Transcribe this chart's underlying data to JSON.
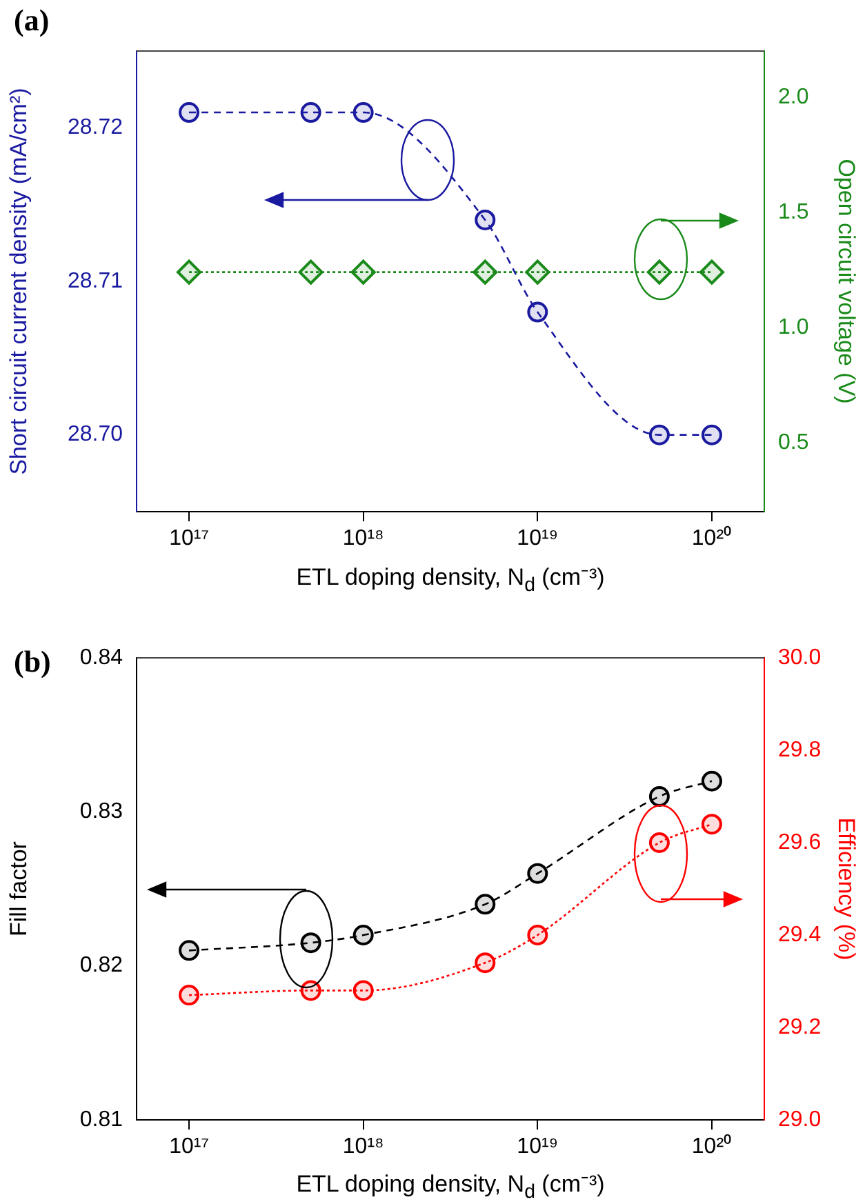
{
  "chart_data": [
    {
      "type": "line",
      "title": "(a)",
      "xlabel": "ETL doping density, N$_{d}$ (cm⁻³)",
      "ylabel": "Short circuit current density (mA/cm²)",
      "y2label": "Open circuit voltage (V)",
      "log": "x",
      "x": [
        1e+17,
        5e+17,
        1e+18,
        5e+18,
        1e+19,
        5e+19,
        1e+20
      ],
      "xlim": [
        5e+16,
        2e+20
      ],
      "xticks": [
        {
          "value": 1e+17,
          "label": "10¹⁷"
        },
        {
          "value": 1e+18,
          "label": "10¹⁸"
        },
        {
          "value": 1e+19,
          "label": "10¹⁹"
        },
        {
          "value": 1e+20,
          "label": "10²⁰"
        }
      ],
      "ylim": [
        28.695,
        28.725
      ],
      "yticks": [
        {
          "value": 28.7,
          "label": "28.70"
        },
        28.71,
        28.72
      ],
      "y2lim": [
        0.2,
        2.2
      ],
      "y2ticks": [
        0.5,
        {
          "value": 1,
          "label": "1.0"
        },
        1.5,
        {
          "value": 2,
          "label": "2.0"
        }
      ],
      "series": [
        {
          "color": "#1a1aa0",
          "values": [
            28.721,
            28.721,
            28.721,
            28.714,
            28.708,
            28.7,
            28.7
          ],
          "marker": "circle",
          "line_style": "dashed"
        },
        {
          "color": "#1a8a1a",
          "values": [
            1.24,
            1.24,
            1.24,
            1.24,
            1.24,
            1.24,
            1.24
          ],
          "axis": "y2",
          "marker": "diamond",
          "line_style": "dotted"
        }
      ]
    },
    {
      "type": "line",
      "title": "(b)",
      "xlabel": "ETL doping density, N$_{d}$ (cm⁻³)",
      "ylabel": "Fill factor",
      "y2label": "Efficiency (%)",
      "log": "x",
      "x": [
        1e+17,
        5e+17,
        1e+18,
        5e+18,
        1e+19,
        5e+19,
        1e+20
      ],
      "xlim": [
        5e+16,
        2e+20
      ],
      "xticks": [
        {
          "value": 1e+17,
          "label": "10¹⁷"
        },
        {
          "value": 1e+18,
          "label": "10¹⁸"
        },
        {
          "value": 1e+19,
          "label": "10¹⁹"
        },
        {
          "value": 1e+20,
          "label": "10²⁰"
        }
      ],
      "ylim": [
        0.81,
        0.84
      ],
      "yticks": [
        0.81,
        0.82,
        0.83,
        0.84
      ],
      "y2lim": [
        29,
        30
      ],
      "y2ticks": [
        {
          "value": 29,
          "label": "29.0"
        },
        29.2,
        29.4,
        29.6,
        29.8,
        {
          "value": 30,
          "label": "30.0"
        }
      ],
      "series": [
        {
          "color": "#000000",
          "values": [
            0.821,
            0.8215,
            0.822,
            0.824,
            0.826,
            0.831,
            0.832
          ],
          "marker": "circle",
          "line_style": "dashed"
        },
        {
          "color": "#ff0000",
          "values": [
            29.27,
            29.28,
            29.28,
            29.34,
            29.4,
            29.6,
            29.64
          ],
          "axis": "y2",
          "marker": "circle",
          "line_style": "dotted"
        }
      ]
    }
  ]
}
